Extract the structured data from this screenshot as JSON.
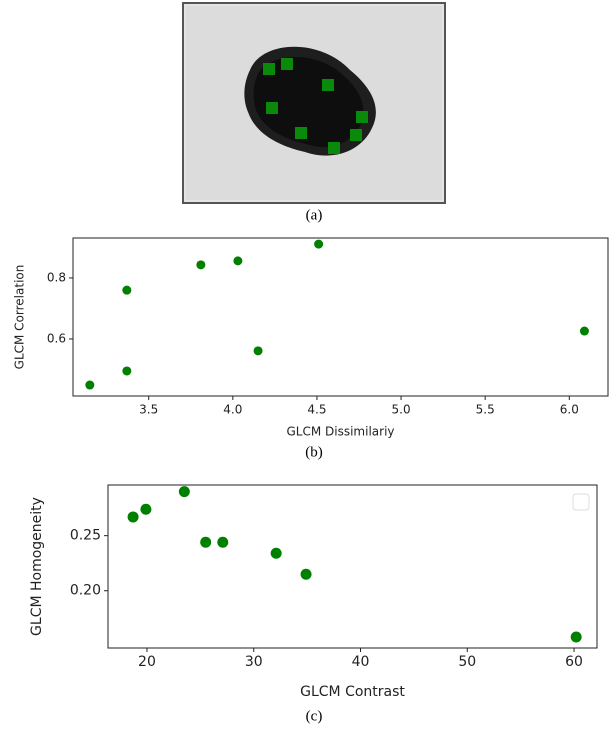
{
  "captions": [
    "(a)",
    "(b)",
    "(c)"
  ],
  "chart_data": [
    {
      "type": "scatter",
      "xlabel": "GLCM Dissimilariy",
      "ylabel": "GLCM Correlation",
      "series": [
        {
          "color": "#008000",
          "x": [
            3.15,
            3.37,
            3.37,
            3.81,
            4.03,
            4.15,
            4.51,
            6.09
          ],
          "values": [
            0.449,
            0.76,
            0.495,
            0.843,
            0.856,
            0.561,
            0.911,
            0.626
          ]
        }
      ],
      "xlim": [
        3.05,
        6.23
      ],
      "ylim": [
        0.413,
        0.931
      ],
      "xticks": [
        3.5,
        {
          "value": 4,
          "label": "4.0"
        },
        4.5,
        {
          "value": 5,
          "label": "5.0"
        },
        5.5,
        {
          "value": 6,
          "label": "6.0"
        }
      ],
      "yticks": [
        0.6,
        0.8
      ]
    },
    {
      "type": "scatter",
      "xlabel": "GLCM Contrast",
      "ylabel": "GLCM Homogeneity",
      "legend": "upper right",
      "series": [
        {
          "color": "#008000",
          "x": [
            18.7,
            19.9,
            23.5,
            25.5,
            27.1,
            32.1,
            34.9,
            60.2
          ],
          "values": [
            0.267,
            0.274,
            0.29,
            0.244,
            0.244,
            0.234,
            0.215,
            0.158
          ]
        }
      ],
      "xlim": [
        16.35,
        62.15
      ],
      "ylim": [
        0.148,
        0.296
      ],
      "xticks": [
        20,
        30,
        40,
        50,
        60
      ],
      "yticks": [
        {
          "value": 0.2,
          "label": "0.20"
        },
        0.25
      ]
    }
  ]
}
